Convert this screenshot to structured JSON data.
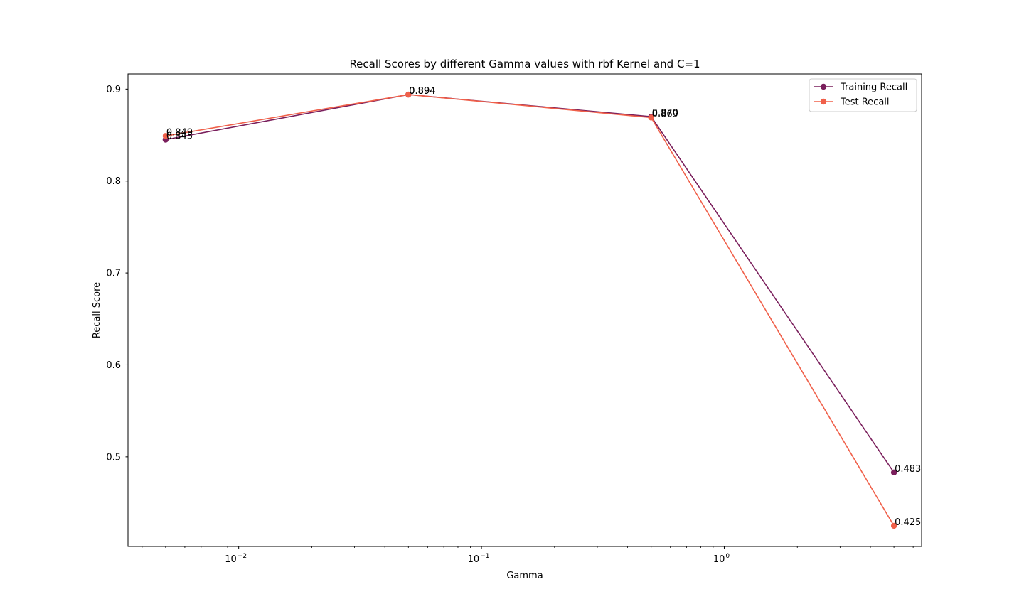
{
  "chart_data": {
    "type": "line",
    "title": "Recall Scores by different Gamma values with rbf Kernel and C=1",
    "xlabel": "Gamma",
    "ylabel": "Recall Score",
    "xscale": "log",
    "xlim": [
      0.0035,
      6.5
    ],
    "ylim": [
      0.4025,
      0.9165
    ],
    "x": [
      0.005,
      0.05,
      0.5,
      5
    ],
    "x_ticks": [
      {
        "value": 0.01,
        "base": "10",
        "exp": "−2"
      },
      {
        "value": 0.1,
        "base": "10",
        "exp": "−1"
      },
      {
        "value": 1,
        "base": "10",
        "exp": "0"
      }
    ],
    "y_ticks": [
      {
        "value": 0.5,
        "label": "0.5"
      },
      {
        "value": 0.6,
        "label": "0.6"
      },
      {
        "value": 0.7,
        "label": "0.7"
      },
      {
        "value": 0.8,
        "label": "0.8"
      },
      {
        "value": 0.9,
        "label": "0.9"
      }
    ],
    "series": [
      {
        "name": "Training Recall",
        "color": "#7a1f5c",
        "values": [
          0.845,
          0.894,
          0.87,
          0.483
        ],
        "labels": [
          "0.845",
          "0.894",
          "0.870",
          "0.483"
        ]
      },
      {
        "name": "Test Recall",
        "color": "#f0604a",
        "values": [
          0.849,
          0.894,
          0.869,
          0.425
        ],
        "labels": [
          "0.849",
          "0.894",
          "0.869",
          "0.425"
        ]
      }
    ],
    "legend_position": "top-right",
    "grid": false
  }
}
